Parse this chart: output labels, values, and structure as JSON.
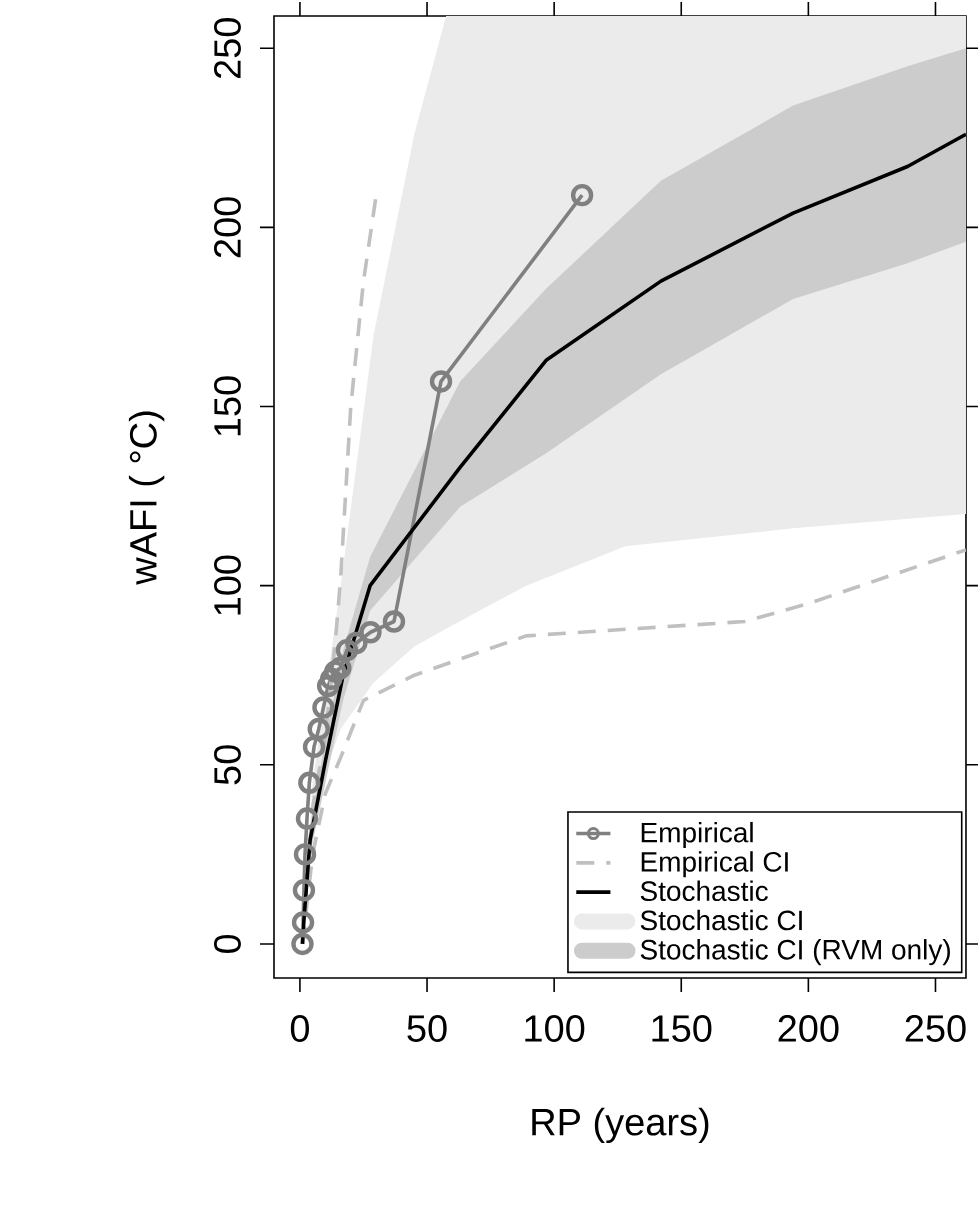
{
  "chart_data": {
    "type": "line",
    "xlabel": "RP (years)",
    "ylabel": "wAFI ( °C)",
    "xlim": [
      -10.2,
      262
    ],
    "ylim": [
      -9.5,
      259
    ],
    "xticks": [
      0,
      50,
      100,
      150,
      200,
      250
    ],
    "yticks": [
      0,
      50,
      100,
      150,
      200,
      250
    ],
    "grid": false,
    "legend": "bottom right",
    "series": [
      {
        "name": "Empirical",
        "marker": "circle",
        "color": "#808080",
        "x": [
          111,
          55.5,
          37,
          27.75,
          22.2,
          18.5,
          15.9,
          13.9,
          12.3,
          11.1,
          9.25,
          7.4,
          5.55,
          3.7,
          2.78,
          2.0,
          1.59,
          1.23,
          1.0
        ],
        "values": [
          209,
          157,
          90,
          87,
          84,
          82,
          77,
          76,
          74,
          72,
          66,
          60,
          55,
          45,
          35,
          25,
          15,
          6,
          0
        ]
      },
      {
        "name": "Empirical CI",
        "line_style": "dashed",
        "color": "#c0c0c0",
        "x": [
          1,
          5,
          10,
          14,
          16,
          20,
          25,
          30
        ],
        "values": [
          3,
          38,
          58,
          85,
          102,
          150,
          185,
          209
        ]
      },
      {
        "line_style": "dashed",
        "color": "#c0c0c0",
        "x": [
          1,
          5,
          10,
          16,
          25,
          45,
          89,
          175,
          200,
          262
        ],
        "values": [
          0,
          25,
          42,
          52,
          68,
          75,
          86,
          90,
          95,
          110
        ]
      },
      {
        "name": "Stochastic",
        "color": "#000000",
        "x": [
          1,
          1.6,
          4,
          10,
          17,
          27.6,
          63,
          97,
          142,
          194,
          239,
          262
        ],
        "values": [
          0,
          7,
          29,
          51,
          75,
          100,
          133,
          163,
          185,
          204,
          217,
          226
        ]
      },
      {
        "name": "Stochastic CI",
        "color": "#ebebeb",
        "x": [
          1,
          5,
          10,
          16,
          29,
          45,
          57.5,
          89,
          128,
          194,
          262
        ],
        "values": [
          null,
          null,
          null,
          null,
          null,
          null,
          null,
          null,
          null,
          null,
          null
        ],
        "lower": [
          0,
          30,
          48,
          60,
          73,
          83,
          88,
          100,
          111,
          116,
          120
        ],
        "upper": [
          0,
          45,
          70,
          100,
          170,
          226,
          259,
          259,
          259,
          259,
          259
        ]
      },
      {
        "name": "Stochastic CI (RVM only)",
        "color": "#cccccc",
        "x": [
          1,
          1.6,
          4,
          10,
          17,
          27.6,
          63,
          97,
          142,
          194,
          239,
          262
        ],
        "values": [
          null,
          null,
          null,
          null,
          null,
          null,
          null,
          null,
          null,
          null,
          null,
          null
        ],
        "lower": [
          0,
          5,
          25,
          45,
          68,
          93,
          122,
          137,
          159,
          180,
          190,
          196
        ],
        "upper": [
          0,
          9,
          33,
          57,
          82,
          108,
          157,
          183,
          213,
          234,
          245,
          250
        ]
      }
    ]
  }
}
